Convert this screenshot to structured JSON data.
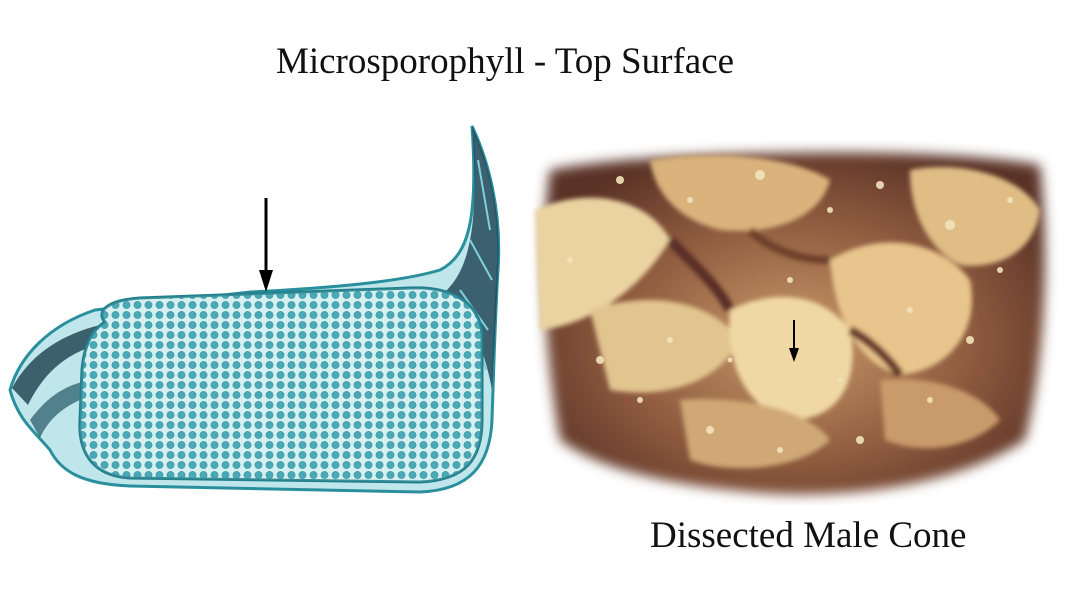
{
  "figure": {
    "title": "Microsporophyll - Top Surface",
    "caption": "Dissected Male Cone"
  },
  "colors": {
    "stain_teal": "#35a9b7",
    "pollen_cell": "#3aa5b3",
    "cone_tan": "#e4c58e",
    "cone_dark": "#6e3f2c",
    "arrow": "#000000"
  }
}
